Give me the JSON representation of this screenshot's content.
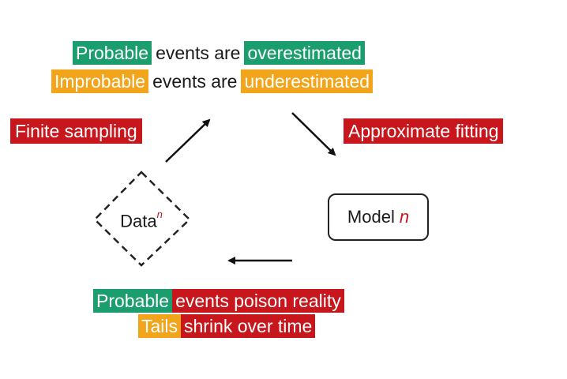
{
  "colors": {
    "green": "#1a9e6e",
    "orange": "#f2a51b",
    "red": "#c8161d"
  },
  "top": {
    "line1": {
      "highlight": "Probable",
      "middle": "events are",
      "highlight2": "overestimated"
    },
    "line2": {
      "highlight": "Improbable",
      "middle": "events are",
      "highlight2": "underestimated"
    }
  },
  "labels": {
    "finite": "Finite sampling",
    "approx": "Approximate fitting"
  },
  "nodes": {
    "data": {
      "label": "Data",
      "superscript": "n"
    },
    "model": {
      "label": "Model",
      "suffix": "n"
    }
  },
  "bottom": {
    "line1": {
      "highlight": "Probable",
      "rest": "events poison reality"
    },
    "line2": {
      "highlight": "Tails",
      "rest": "shrink over time"
    }
  }
}
